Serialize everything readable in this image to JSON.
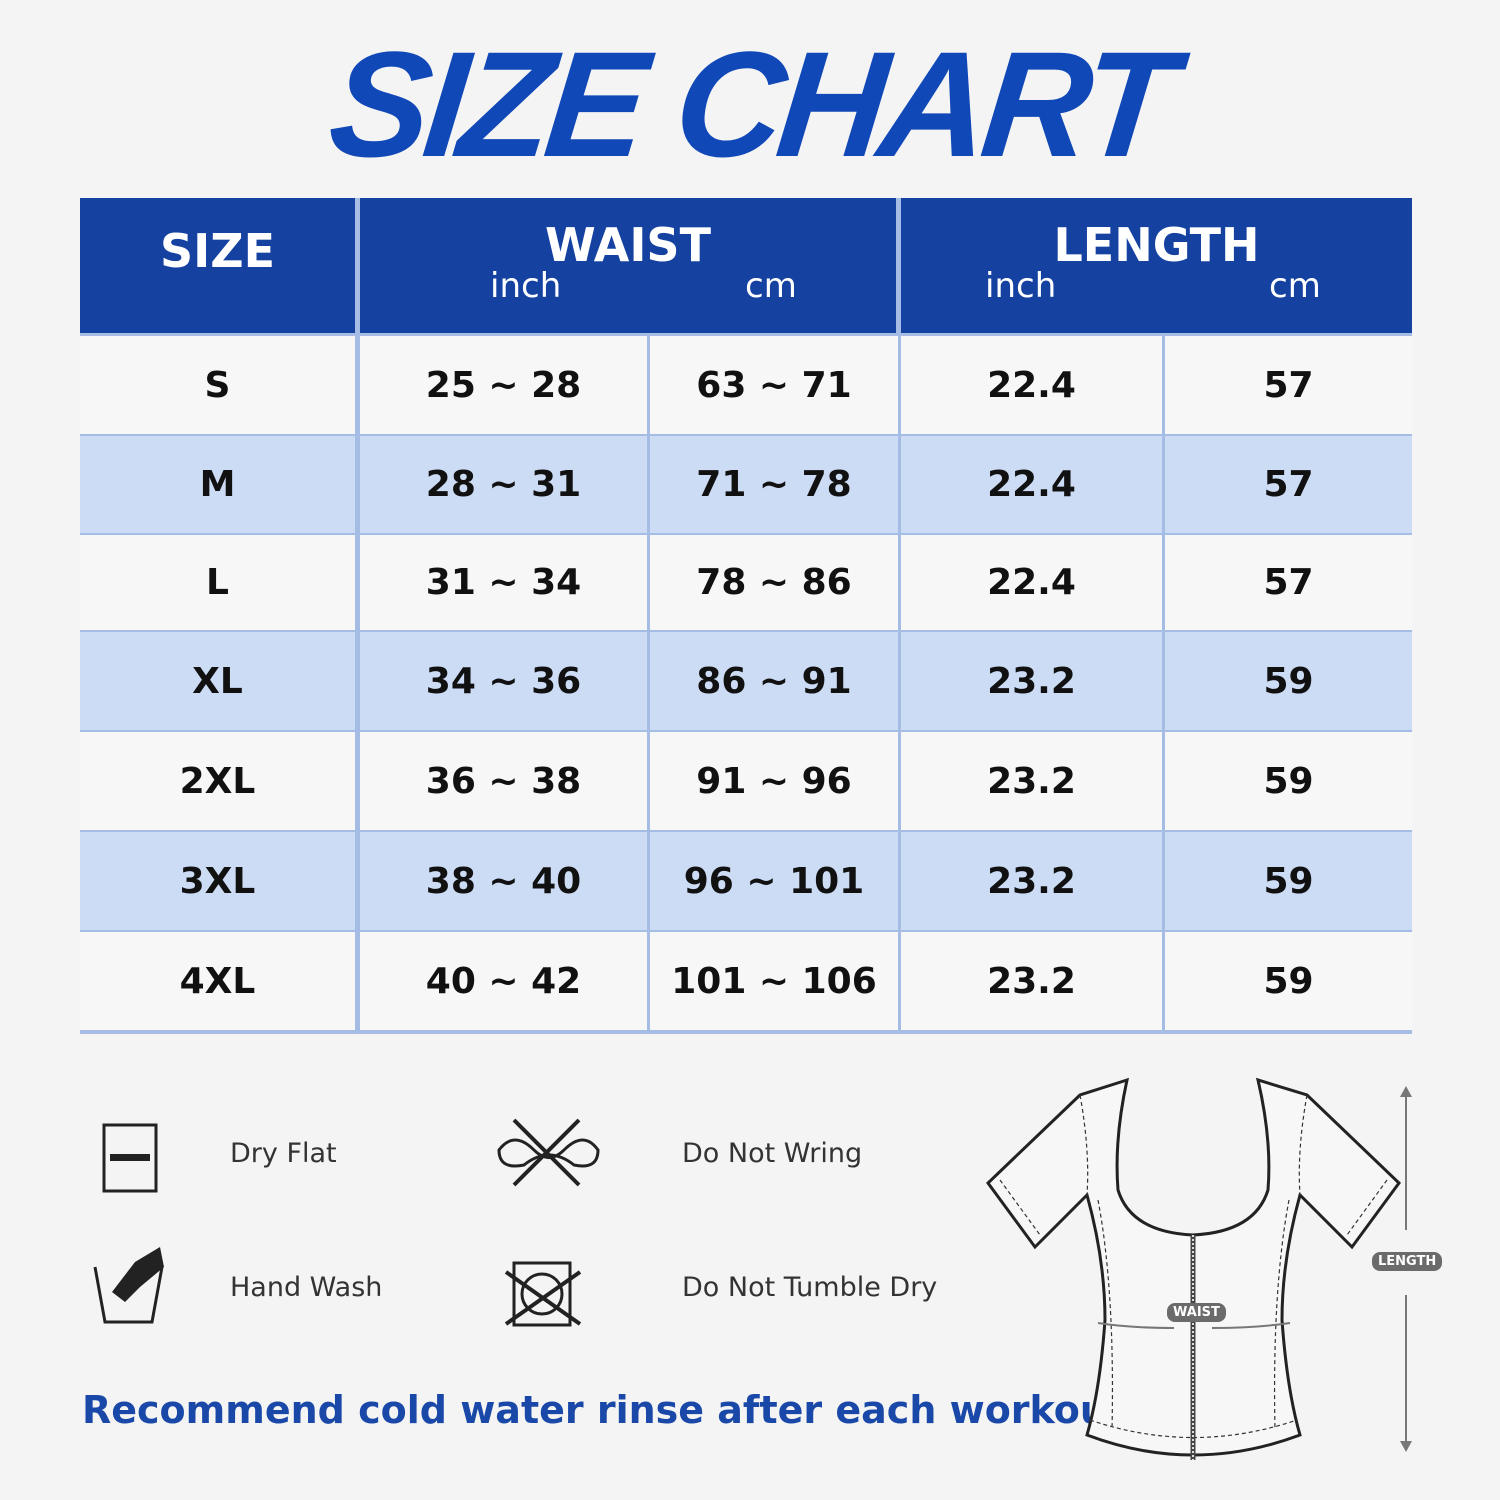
{
  "title": "SIZE CHART",
  "table": {
    "headers": {
      "size": "SIZE",
      "waist": "WAIST",
      "length": "LENGTH",
      "unit_inch": "inch",
      "unit_cm": "cm"
    },
    "rows": [
      [
        "S",
        "25 ~ 28",
        "63 ~ 71",
        "22.4",
        "57"
      ],
      [
        "M",
        "28 ~ 31",
        "71 ~ 78",
        "22.4",
        "57"
      ],
      [
        "L",
        "31 ~ 34",
        "78 ~ 86",
        "22.4",
        "57"
      ],
      [
        "XL",
        "34 ~ 36",
        "86 ~ 91",
        "23.2",
        "59"
      ],
      [
        "2XL",
        "36 ~ 38",
        "91 ~ 96",
        "23.2",
        "59"
      ],
      [
        "3XL",
        "38 ~ 40",
        "96 ~ 101",
        "23.2",
        "59"
      ],
      [
        "4XL",
        "40 ~ 42",
        "101 ~ 106",
        "23.2",
        "59"
      ]
    ]
  },
  "care": [
    {
      "label": "Dry Flat",
      "icon": "dry-flat-icon"
    },
    {
      "label": "Do Not Wring",
      "icon": "do-not-wring-icon"
    },
    {
      "label": "Hand Wash",
      "icon": "hand-wash-icon"
    },
    {
      "label": "Do Not Tumble Dry",
      "icon": "do-not-tumble-dry-icon"
    }
  ],
  "note": "Recommend cold water rinse after each workout.",
  "diagram": {
    "waist_label": "WAIST",
    "length_label": "LENGTH"
  },
  "colors": {
    "header": "#1541a1",
    "stripe": "#cddcf5",
    "title": "#1148b8"
  }
}
